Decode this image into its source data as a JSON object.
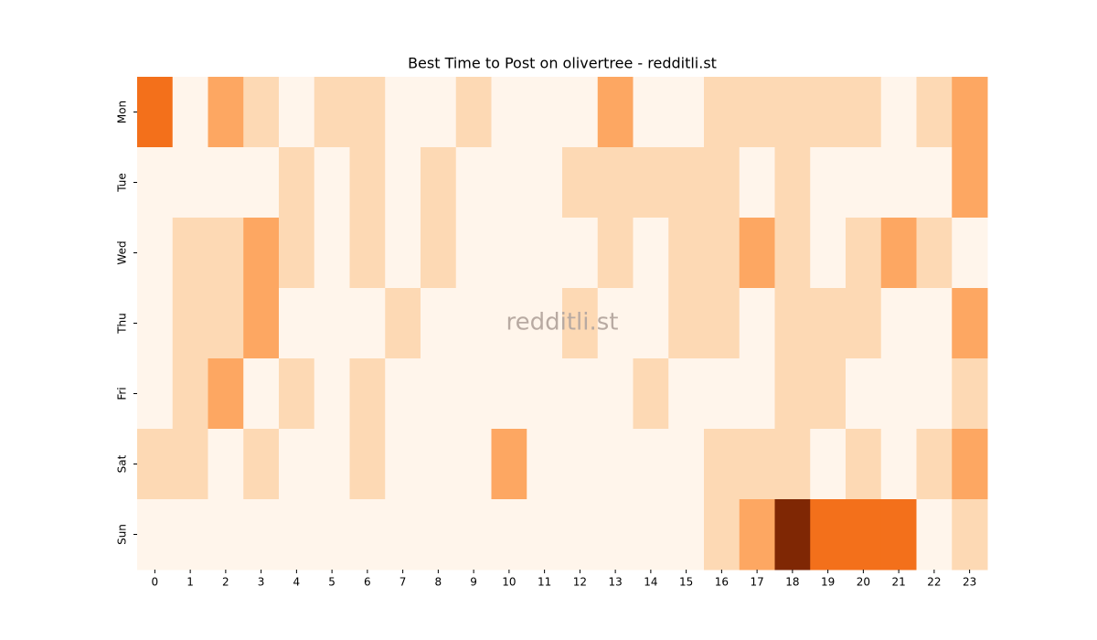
{
  "chart_data": {
    "type": "heatmap",
    "title": "Best Time to Post on olivertree - redditli.st",
    "watermark": "redditli.st",
    "colormap": [
      "#fff5eb",
      "#fee6ce",
      "#fdd0a2",
      "#fdae6b",
      "#fd8d3c",
      "#f16913",
      "#d94801",
      "#a63603",
      "#7f2704"
    ],
    "x": [
      0,
      1,
      2,
      3,
      4,
      5,
      6,
      7,
      8,
      9,
      10,
      11,
      12,
      13,
      14,
      15,
      16,
      17,
      18,
      19,
      20,
      21,
      22,
      23
    ],
    "y": [
      "Mon",
      "Tue",
      "Wed",
      "Thu",
      "Fri",
      "Sat",
      "Sun"
    ],
    "values": [
      [
        3,
        0,
        2,
        1,
        0,
        1,
        1,
        0,
        0,
        1,
        0,
        0,
        0,
        2,
        0,
        0,
        1,
        1,
        1,
        1,
        1,
        0,
        1,
        2
      ],
      [
        0,
        0,
        0,
        0,
        1,
        0,
        1,
        0,
        1,
        0,
        0,
        0,
        1,
        1,
        1,
        1,
        1,
        0,
        1,
        0,
        0,
        0,
        0,
        2
      ],
      [
        0,
        1,
        1,
        2,
        1,
        0,
        1,
        0,
        1,
        0,
        0,
        0,
        0,
        1,
        0,
        1,
        1,
        2,
        1,
        0,
        1,
        2,
        1,
        0
      ],
      [
        0,
        1,
        1,
        2,
        0,
        0,
        0,
        1,
        0,
        0,
        0,
        0,
        1,
        0,
        0,
        1,
        1,
        0,
        1,
        1,
        1,
        0,
        0,
        2
      ],
      [
        0,
        1,
        2,
        0,
        1,
        0,
        1,
        0,
        0,
        0,
        0,
        0,
        0,
        0,
        1,
        0,
        0,
        0,
        1,
        1,
        0,
        0,
        0,
        1
      ],
      [
        1,
        1,
        0,
        1,
        0,
        0,
        1,
        0,
        0,
        0,
        2,
        0,
        0,
        0,
        0,
        0,
        1,
        1,
        1,
        0,
        1,
        0,
        1,
        2
      ],
      [
        0,
        0,
        0,
        0,
        0,
        0,
        0,
        0,
        0,
        0,
        0,
        0,
        0,
        0,
        0,
        0,
        1,
        2,
        5,
        3,
        3,
        3,
        0,
        1
      ]
    ]
  }
}
